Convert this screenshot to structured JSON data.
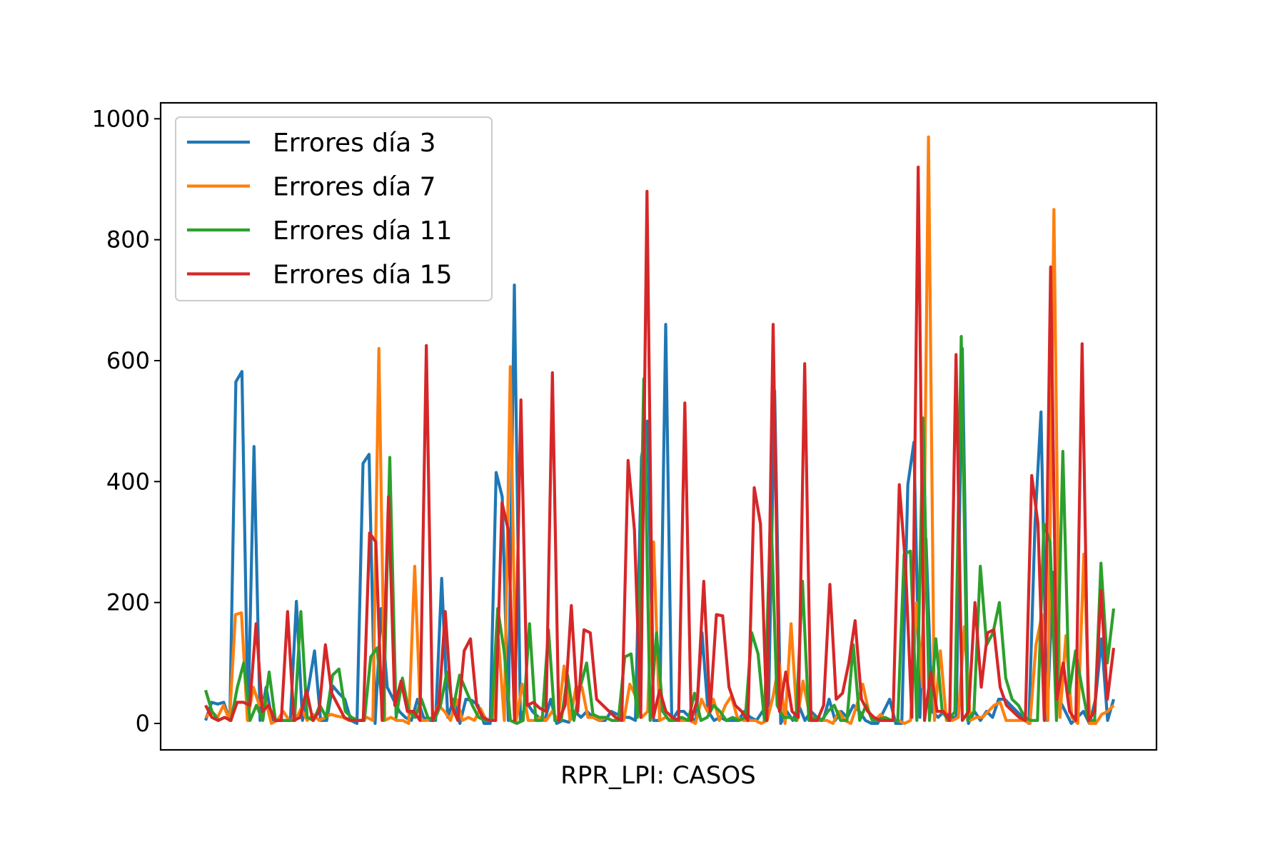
{
  "chart_data": {
    "type": "line",
    "title": "",
    "xlabel": "RPR_LPI: CASOS",
    "ylabel": "",
    "ylim": [
      -50,
      1000
    ],
    "yticks": [
      0,
      200,
      400,
      600,
      800,
      1000
    ],
    "xticks_visible": false,
    "grid": false,
    "legend_position": "top-left",
    "series": [
      {
        "name": "Errores día 3",
        "color": "#1f77b4",
        "values": [
          5,
          35,
          32,
          35,
          5,
          565,
          582,
          5,
          458,
          5,
          60,
          5,
          5,
          5,
          5,
          202,
          5,
          60,
          120,
          5,
          5,
          62,
          50,
          40,
          5,
          0,
          430,
          445,
          0,
          190,
          60,
          40,
          20,
          10,
          5,
          40,
          10,
          5,
          5,
          240,
          10,
          40,
          0,
          40,
          38,
          30,
          0,
          0,
          415,
          375,
          5,
          725,
          5,
          35,
          20,
          10,
          5,
          40,
          0,
          5,
          2,
          20,
          10,
          20,
          10,
          5,
          5,
          20,
          15,
          10,
          10,
          5,
          440,
          500,
          5,
          5,
          660,
          5,
          20,
          20,
          10,
          5,
          150,
          20,
          5,
          10,
          5,
          5,
          5,
          20,
          10,
          5,
          20,
          30,
          550,
          0,
          20,
          5,
          30,
          5,
          20,
          10,
          5,
          40,
          5,
          20,
          10,
          30,
          20,
          5,
          0,
          0,
          20,
          40,
          0,
          0,
          395,
          465,
          10,
          305,
          20,
          10,
          20,
          10,
          10,
          620,
          0,
          20,
          5,
          20,
          10,
          40,
          40,
          30,
          20,
          10,
          0,
          330,
          515,
          5,
          250,
          40,
          20,
          0,
          10,
          20,
          0,
          40,
          140,
          5,
          40
        ]
      },
      {
        "name": "Errores día 7",
        "color": "#ff7f0e",
        "values": [
          10,
          20,
          10,
          30,
          5,
          180,
          183,
          5,
          60,
          30,
          40,
          0,
          5,
          20,
          5,
          5,
          25,
          5,
          15,
          5,
          10,
          15,
          12,
          10,
          5,
          5,
          5,
          10,
          5,
          620,
          5,
          10,
          5,
          5,
          0,
          260,
          5,
          5,
          10,
          30,
          20,
          5,
          40,
          5,
          10,
          5,
          25,
          5,
          5,
          140,
          5,
          590,
          5,
          65,
          5,
          5,
          10,
          5,
          20,
          5,
          95,
          5,
          60,
          60,
          10,
          10,
          5,
          10,
          5,
          5,
          5,
          65,
          45,
          10,
          20,
          300,
          5,
          10,
          5,
          5,
          5,
          5,
          0,
          40,
          20,
          40,
          5,
          30,
          45,
          10,
          5,
          5,
          5,
          0,
          5,
          45,
          100,
          0,
          165,
          5,
          70,
          20,
          5,
          5,
          5,
          0,
          20,
          5,
          0,
          30,
          65,
          20,
          5,
          15,
          5,
          5,
          5,
          0,
          5,
          200,
          60,
          970,
          5,
          120,
          5,
          5,
          10,
          160,
          5,
          10,
          10,
          20,
          30,
          35,
          5,
          5,
          5,
          5,
          0,
          130,
          180,
          5,
          850,
          10,
          145,
          10,
          0,
          280,
          0,
          0,
          15,
          20,
          30
        ]
      },
      {
        "name": "Errores día 11",
        "color": "#2ca02c",
        "values": [
          55,
          20,
          5,
          10,
          5,
          60,
          100,
          5,
          30,
          5,
          85,
          5,
          5,
          5,
          5,
          185,
          10,
          5,
          30,
          10,
          80,
          90,
          20,
          10,
          5,
          5,
          110,
          125,
          5,
          440,
          10,
          75,
          20,
          10,
          40,
          10,
          5,
          30,
          85,
          25,
          80,
          55,
          30,
          10,
          5,
          5,
          190,
          120,
          5,
          0,
          5,
          165,
          5,
          5,
          155,
          5,
          5,
          80,
          5,
          60,
          100,
          15,
          10,
          10,
          5,
          5,
          110,
          115,
          10,
          570,
          5,
          150,
          20,
          5,
          5,
          10,
          5,
          50,
          5,
          10,
          30,
          20,
          5,
          10,
          5,
          10,
          150,
          115,
          5,
          360,
          30,
          10,
          10,
          5,
          235,
          5,
          10,
          5,
          20,
          30,
          5,
          5,
          130,
          5,
          30,
          5,
          5,
          10,
          5,
          5,
          280,
          285,
          5,
          505,
          5,
          140,
          20,
          5,
          20,
          640,
          5,
          20,
          260,
          130,
          150,
          200,
          75,
          40,
          30,
          10,
          5,
          5,
          330,
          300,
          5,
          450,
          50,
          120,
          60,
          5,
          5,
          265,
          100,
          190
        ]
      },
      {
        "name": "Errores día 15",
        "color": "#d62728",
        "values": [
          30,
          10,
          5,
          10,
          5,
          35,
          35,
          30,
          165,
          20,
          30,
          5,
          5,
          185,
          5,
          10,
          55,
          5,
          20,
          130,
          50,
          30,
          10,
          5,
          5,
          5,
          315,
          300,
          5,
          375,
          30,
          70,
          20,
          20,
          5,
          625,
          5,
          30,
          185,
          30,
          5,
          120,
          140,
          30,
          10,
          5,
          5,
          365,
          320,
          5,
          535,
          30,
          35,
          25,
          20,
          580,
          5,
          30,
          195,
          20,
          155,
          150,
          40,
          30,
          20,
          10,
          5,
          435,
          320,
          10,
          880,
          10,
          55,
          20,
          10,
          5,
          530,
          5,
          40,
          235,
          20,
          180,
          178,
          60,
          30,
          20,
          5,
          390,
          330,
          5,
          660,
          20,
          85,
          20,
          10,
          595,
          5,
          5,
          30,
          230,
          40,
          50,
          100,
          170,
          40,
          20,
          10,
          5,
          5,
          5,
          395,
          260,
          10,
          920,
          5,
          85,
          20,
          20,
          5,
          610,
          5,
          20,
          200,
          60,
          150,
          155,
          60,
          30,
          20,
          10,
          5,
          410,
          330,
          5,
          755,
          40,
          100,
          20,
          5,
          628,
          5,
          20,
          220,
          40,
          125
        ]
      }
    ]
  }
}
